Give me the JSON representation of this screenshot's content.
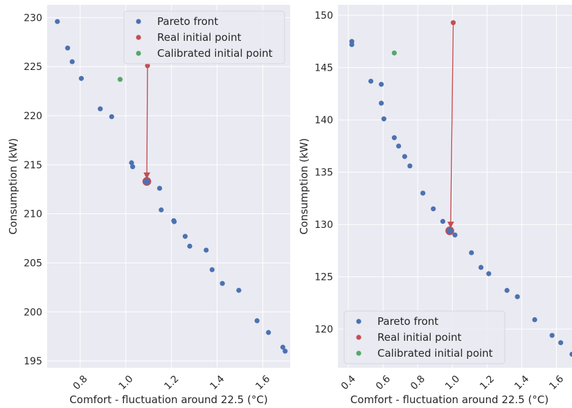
{
  "colors": {
    "background": "#eaeaf2",
    "pareto": "#4c72b0",
    "real": "#c44e52",
    "calibrated": "#55a868",
    "arrow": "#c44e52"
  },
  "chart_data": [
    {
      "type": "scatter",
      "xlabel": "Comfort - fluctuation around 22.5 (°C)",
      "ylabel": "Consumption (kW)",
      "xlim": [
        0.655,
        1.72
      ],
      "ylim": [
        194.3,
        231.3
      ],
      "x_ticks": [
        "0.8",
        "1.0",
        "1.2",
        "1.4",
        "1.6"
      ],
      "x_tick_values": [
        0.8,
        1.0,
        1.2,
        1.4,
        1.6
      ],
      "y_ticks": [
        "195",
        "200",
        "205",
        "210",
        "215",
        "220",
        "225",
        "230"
      ],
      "y_tick_values": [
        195,
        200,
        205,
        210,
        215,
        220,
        225,
        230
      ],
      "legend": {
        "position": "top-right",
        "entries": [
          "Pareto front",
          "Real initial point",
          "Calibrated initial point"
        ]
      },
      "series": [
        {
          "name": "Pareto front",
          "points": [
            [
              0.7,
              229.6
            ],
            [
              0.745,
              226.9
            ],
            [
              0.765,
              225.5
            ],
            [
              0.805,
              223.8
            ],
            [
              0.888,
              220.7
            ],
            [
              0.938,
              219.9
            ],
            [
              1.025,
              215.2
            ],
            [
              1.03,
              214.8
            ],
            [
              1.092,
              213.3
            ],
            [
              1.148,
              212.6
            ],
            [
              1.155,
              210.4
            ],
            [
              1.21,
              209.3
            ],
            [
              1.212,
              209.2
            ],
            [
              1.26,
              207.7
            ],
            [
              1.28,
              206.7
            ],
            [
              1.352,
              206.3
            ],
            [
              1.378,
              204.3
            ],
            [
              1.423,
              202.9
            ],
            [
              1.495,
              202.2
            ],
            [
              1.575,
              199.1
            ],
            [
              1.625,
              197.9
            ],
            [
              1.688,
              196.4
            ],
            [
              1.698,
              196.0
            ]
          ]
        },
        {
          "name": "Real initial point",
          "points": [
            [
              1.095,
              225.1
            ]
          ]
        },
        {
          "name": "Calibrated initial point",
          "points": [
            [
              0.975,
              223.7
            ]
          ]
        }
      ],
      "arrow": {
        "from": [
          1.095,
          225.1
        ],
        "to": [
          1.092,
          213.6
        ]
      },
      "highlight": [
        1.092,
        213.3
      ]
    },
    {
      "type": "scatter",
      "xlabel": "Comfort - fluctuation around 22.5 (°C)",
      "ylabel": "Consumption (kW)",
      "xlim": [
        0.34,
        1.69
      ],
      "ylim": [
        116.3,
        151.0
      ],
      "x_ticks": [
        "0.4",
        "0.6",
        "0.8",
        "1.0",
        "1.2",
        "1.4",
        "1.6"
      ],
      "x_tick_values": [
        0.4,
        0.6,
        0.8,
        1.0,
        1.2,
        1.4,
        1.6
      ],
      "y_ticks": [
        "120",
        "125",
        "130",
        "135",
        "140",
        "145",
        "150"
      ],
      "y_tick_values": [
        120,
        125,
        130,
        135,
        140,
        145,
        150
      ],
      "legend": {
        "position": "bottom-left",
        "entries": [
          "Pareto front",
          "Real initial point",
          "Calibrated initial point"
        ]
      },
      "series": [
        {
          "name": "Pareto front",
          "points": [
            [
              0.42,
              147.5
            ],
            [
              0.42,
              147.2
            ],
            [
              0.53,
              143.7
            ],
            [
              0.59,
              143.4
            ],
            [
              0.59,
              141.6
            ],
            [
              0.605,
              140.1
            ],
            [
              0.665,
              138.3
            ],
            [
              0.69,
              137.5
            ],
            [
              0.725,
              136.5
            ],
            [
              0.755,
              135.6
            ],
            [
              0.83,
              133.0
            ],
            [
              0.89,
              131.5
            ],
            [
              0.945,
              130.3
            ],
            [
              0.985,
              129.4
            ],
            [
              1.015,
              129.0
            ],
            [
              1.11,
              127.3
            ],
            [
              1.165,
              125.9
            ],
            [
              1.21,
              125.3
            ],
            [
              1.315,
              123.7
            ],
            [
              1.375,
              123.1
            ],
            [
              1.475,
              120.9
            ],
            [
              1.575,
              119.4
            ],
            [
              1.625,
              118.7
            ],
            [
              1.69,
              117.6
            ]
          ]
        },
        {
          "name": "Real initial point",
          "points": [
            [
              1.005,
              149.3
            ]
          ]
        },
        {
          "name": "Calibrated initial point",
          "points": [
            [
              0.665,
              146.4
            ]
          ]
        }
      ],
      "arrow": {
        "from": [
          1.005,
          149.3
        ],
        "to": [
          0.99,
          129.7
        ]
      },
      "highlight": [
        0.985,
        129.4
      ]
    }
  ]
}
